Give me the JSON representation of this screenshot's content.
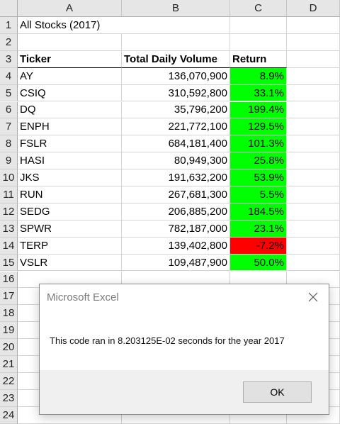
{
  "sheet": {
    "columns": [
      "A",
      "B",
      "C",
      "D"
    ],
    "rows": [
      "1",
      "2",
      "3",
      "4",
      "5",
      "6",
      "7",
      "8",
      "9",
      "10",
      "11",
      "12",
      "13",
      "14",
      "15",
      "16",
      "17",
      "18",
      "19",
      "20",
      "21",
      "22",
      "23",
      "24"
    ],
    "title": "All Stocks (2017)",
    "headers": {
      "ticker": "Ticker",
      "volume": "Total Daily Volume",
      "return": "Return"
    },
    "data": [
      {
        "ticker": "AY",
        "volume": "136,070,900",
        "ret": "8.9%"
      },
      {
        "ticker": "CSIQ",
        "volume": "310,592,800",
        "ret": "33.1%"
      },
      {
        "ticker": "DQ",
        "volume": "35,796,200",
        "ret": "199.4%"
      },
      {
        "ticker": "ENPH",
        "volume": "221,772,100",
        "ret": "129.5%"
      },
      {
        "ticker": "FSLR",
        "volume": "684,181,400",
        "ret": "101.3%"
      },
      {
        "ticker": "HASI",
        "volume": "80,949,300",
        "ret": "25.8%"
      },
      {
        "ticker": "JKS",
        "volume": "191,632,200",
        "ret": "53.9%"
      },
      {
        "ticker": "RUN",
        "volume": "267,681,300",
        "ret": "5.5%"
      },
      {
        "ticker": "SEDG",
        "volume": "206,885,200",
        "ret": "184.5%"
      },
      {
        "ticker": "SPWR",
        "volume": "782,187,000",
        "ret": "23.1%"
      },
      {
        "ticker": "TERP",
        "volume": "139,402,800",
        "ret": "-7.2%"
      },
      {
        "ticker": "VSLR",
        "volume": "109,487,900",
        "ret": "50.0%"
      }
    ],
    "colors": {
      "positive": "#00ff00",
      "negative": "#ff0000"
    }
  },
  "dialog": {
    "title": "Microsoft Excel",
    "message": "This code ran in 8.203125E-02 seconds for the year 2017",
    "ok_label": "OK",
    "close_icon": "close-icon"
  }
}
